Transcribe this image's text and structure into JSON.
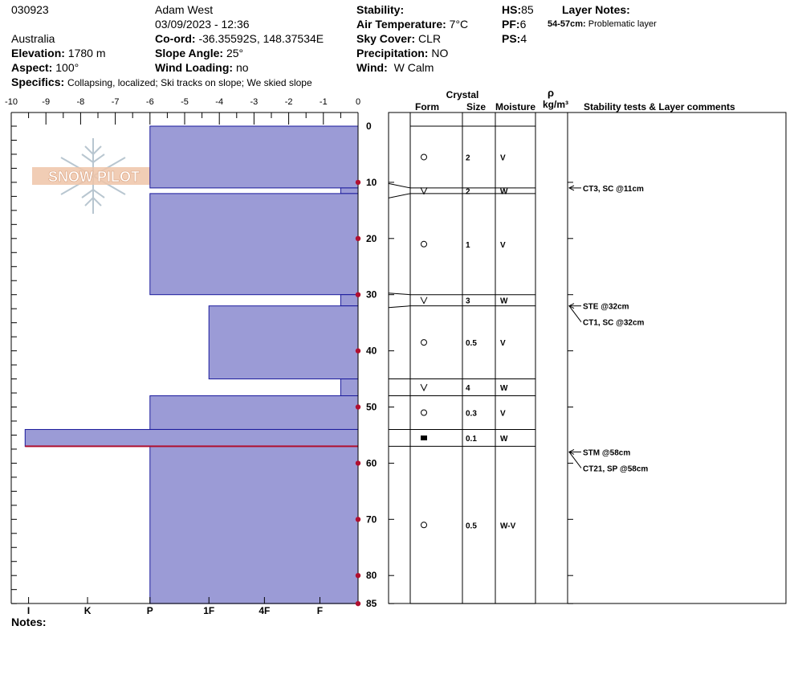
{
  "header": {
    "obs_id": "030923",
    "country": "Australia",
    "observer": "Adam West",
    "datetime": "03/09/2023 - 12:36",
    "elevation_label": "Elevation:",
    "elevation": "1780 m",
    "aspect_label": "Aspect:",
    "aspect": "100°",
    "coord_label": "Co-ord:",
    "coord": "-36.35592S, 148.37534E",
    "slope_label": "Slope Angle:",
    "slope": "25°",
    "wind_loading_label": "Wind Loading:",
    "wind_loading": "no",
    "stability_label": "Stability:",
    "stability": "",
    "air_temp_label": "Air Temperature:",
    "air_temp": "7°C",
    "sky_label": "Sky Cover:",
    "sky": "CLR",
    "precip_label": "Precipitation:",
    "precip": "NO",
    "wind_label": "Wind:",
    "wind": "W Calm",
    "hs_label": "HS:",
    "hs": "85",
    "pf_label": "PF:",
    "pf": "6",
    "ps_label": "PS:",
    "ps": "4",
    "layer_notes_label": "Layer Notes:",
    "layer_note_depth": "54-57cm:",
    "layer_note_text": "Problematic layer",
    "specifics_label": "Specifics:",
    "specifics": "Collapsing, localized;  Ski tracks on slope;  We skied slope",
    "notes_label": "Notes:"
  },
  "logo_text": "SNOW PILOT",
  "colors": {
    "hardness_fill": "#9b9bd6",
    "hardness_stroke": "#1a1a9c",
    "problem_line": "#b01030",
    "depth_marker": "#b01030"
  },
  "table_headers": {
    "crystal": "Crystal",
    "form": "Form",
    "size": "Size",
    "moisture": "Moisture",
    "rho": "ρ",
    "density_unit": "kg/m³",
    "comments": "Stability tests & Layer comments"
  },
  "chart_data": {
    "type": "hardness_profile",
    "depth_axis": {
      "min": 0,
      "max": 85,
      "ticks": [
        0,
        10,
        20,
        30,
        40,
        50,
        60,
        70,
        80,
        85
      ]
    },
    "hardness_axis_top": {
      "min": -10,
      "max": 0,
      "ticks": [
        "-10",
        "-9",
        "-8",
        "-7",
        "-6",
        "-5",
        "-4",
        "-3",
        "-2",
        "-1",
        "0"
      ]
    },
    "hardness_axis_bottom": [
      {
        "label": "I",
        "value": -9.5
      },
      {
        "label": "K",
        "value": -7.8
      },
      {
        "label": "P",
        "value": -6
      },
      {
        "label": "1F",
        "value": -4.3
      },
      {
        "label": "4F",
        "value": -2.7
      },
      {
        "label": "F",
        "value": -1.1
      }
    ],
    "layers": [
      {
        "top": 0,
        "bottom": 11,
        "hardness": -6,
        "form": "circle",
        "size": "2",
        "moisture": "V"
      },
      {
        "top": 11,
        "bottom": 12,
        "hardness": -0.5,
        "form": "vee",
        "size": "2",
        "moisture": "W"
      },
      {
        "top": 12,
        "bottom": 30,
        "hardness": -6,
        "form": "circle",
        "size": "1",
        "moisture": "V"
      },
      {
        "top": 30,
        "bottom": 32,
        "hardness": -0.5,
        "form": "vee",
        "size": "3",
        "moisture": "W"
      },
      {
        "top": 32,
        "bottom": 45,
        "hardness": -4.3,
        "form": "circle",
        "size": "0.5",
        "moisture": "V"
      },
      {
        "top": 45,
        "bottom": 48,
        "hardness": -0.5,
        "form": "vee",
        "size": "4",
        "moisture": "W"
      },
      {
        "top": 48,
        "bottom": 54,
        "hardness": -6,
        "form": "circle",
        "size": "0.3",
        "moisture": "V"
      },
      {
        "top": 54,
        "bottom": 57,
        "hardness": -9.6,
        "form": "square",
        "size": "0.1",
        "moisture": "W"
      },
      {
        "top": 57,
        "bottom": 85,
        "hardness": -6,
        "form": "circle",
        "size": "0.5",
        "moisture": "W-V"
      }
    ],
    "problem_layer_depth": 57,
    "tests": [
      {
        "depth": 11,
        "labels": [
          "CT3, SC @11cm"
        ]
      },
      {
        "depth": 32,
        "labels": [
          "STE @32cm",
          "CT1, SC @32cm"
        ]
      },
      {
        "depth": 58,
        "labels": [
          "STM @58cm",
          "CT21, SP @58cm"
        ]
      }
    ]
  }
}
